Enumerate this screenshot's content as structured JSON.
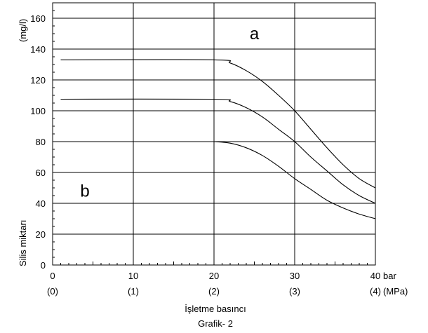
{
  "chart_data": {
    "type": "line",
    "title": "",
    "caption": "Grafik- 2",
    "xlabel": "İşletme basıncı",
    "ylabel": "Silis miktarı",
    "ylabel_unit": "(mg/l)",
    "x_unit": "bar",
    "x_secondary_unit": "(MPa)",
    "xlim": [
      0,
      40
    ],
    "ylim": [
      0,
      170
    ],
    "x_ticks": [
      0,
      10,
      20,
      30,
      40
    ],
    "x_tick_labels": [
      "0",
      "10",
      "20",
      "30",
      "40"
    ],
    "x_secondary_tick_labels": [
      "(0)",
      "(1)",
      "(2)",
      "(3)",
      "(4)"
    ],
    "y_ticks": [
      0,
      20,
      40,
      60,
      80,
      100,
      120,
      140,
      160
    ],
    "y_tick_labels": [
      "0",
      "20",
      "40",
      "60",
      "80",
      "100",
      "120",
      "140",
      "160"
    ],
    "grid": true,
    "region_labels": [
      {
        "text": "a",
        "x": 25,
        "y": 150
      },
      {
        "text": "b",
        "x": 4,
        "y": 48
      }
    ],
    "series": [
      {
        "points": [
          [
            0,
            160
          ],
          [
            20,
            160
          ]
        ]
      },
      {
        "points": [
          [
            1,
            133
          ],
          [
            20,
            133
          ],
          [
            22,
            131
          ],
          [
            24,
            126
          ],
          [
            26,
            119
          ],
          [
            28,
            110
          ],
          [
            30,
            100
          ],
          [
            32,
            88
          ],
          [
            34,
            76
          ],
          [
            36,
            65
          ],
          [
            38,
            56
          ],
          [
            40,
            50
          ]
        ]
      },
      {
        "points": [
          [
            1,
            107.5
          ],
          [
            20,
            107.5
          ],
          [
            22,
            106
          ],
          [
            24,
            102
          ],
          [
            26,
            96
          ],
          [
            28,
            88
          ],
          [
            30,
            80
          ],
          [
            32,
            70
          ],
          [
            34,
            61
          ],
          [
            36,
            52
          ],
          [
            38,
            45
          ],
          [
            40,
            40
          ]
        ]
      },
      {
        "points": [
          [
            20,
            80
          ],
          [
            22,
            79
          ],
          [
            24,
            76
          ],
          [
            26,
            71
          ],
          [
            28,
            64
          ],
          [
            30,
            56
          ],
          [
            32,
            49
          ],
          [
            34,
            42
          ],
          [
            36,
            37
          ],
          [
            38,
            33
          ],
          [
            40,
            30
          ]
        ]
      }
    ]
  }
}
